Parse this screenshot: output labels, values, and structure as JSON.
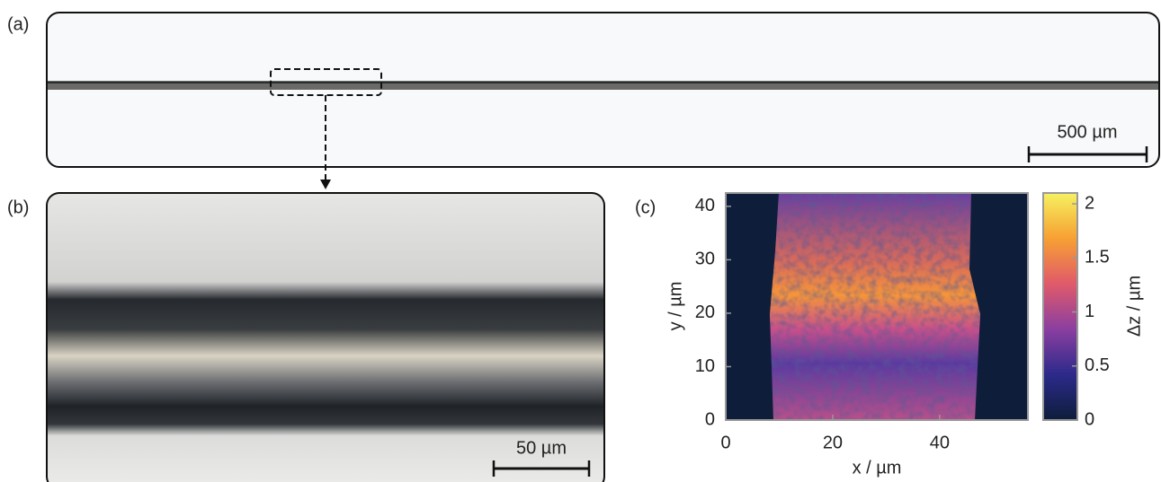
{
  "panels": {
    "a": {
      "label": "(a)",
      "scale_bar": "500 µm"
    },
    "b": {
      "label": "(b)",
      "scale_bar": "50 µm"
    },
    "c": {
      "label": "(c)"
    }
  },
  "chart_data": {
    "type": "heatmap",
    "xlabel": "x / µm",
    "ylabel": "y / µm",
    "xlim": [
      0,
      56.5
    ],
    "ylim": [
      0,
      42.5
    ],
    "xticks": [
      0,
      20,
      40
    ],
    "yticks": [
      0,
      10,
      20,
      30,
      40
    ],
    "colorbar": {
      "label": "Δz / µm",
      "lim": [
        0,
        2.1
      ],
      "ticks": [
        0,
        0.5,
        1,
        1.5,
        2
      ]
    }
  }
}
